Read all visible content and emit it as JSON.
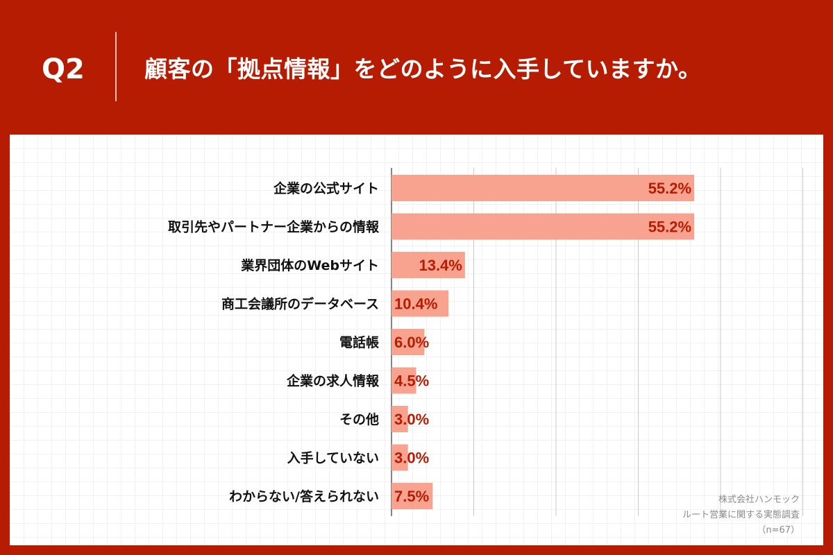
{
  "header": {
    "question_no": "Q2",
    "title": "顧客の「拠点情報」をどのように入手していますか。"
  },
  "source": {
    "company": "株式会社ハンモック",
    "survey": "ルート営業に関する実態調査",
    "sample": "（n=67）"
  },
  "colors": {
    "background": "#b51c02",
    "bar": "#f7a390",
    "value_label": "#b51c02"
  },
  "chart_data": {
    "type": "bar",
    "orientation": "horizontal",
    "categories": [
      "企業の公式サイト",
      "取引先やパートナー企業からの情報",
      "業界団体のWebサイト",
      "商工会議所のデータベース",
      "電話帳",
      "企業の求人情報",
      "その他",
      "入手していない",
      "わからない/答えられない"
    ],
    "values": [
      55.2,
      55.2,
      13.4,
      10.4,
      6.0,
      4.5,
      3.0,
      3.0,
      7.5
    ],
    "value_labels": [
      "55.2%",
      "55.2%",
      "13.4%",
      "10.4%",
      "6.0%",
      "4.5%",
      "3.0%",
      "3.0%",
      "7.5%"
    ],
    "unit": "%",
    "xlim": [
      0,
      75
    ],
    "gridlines": [
      15,
      30,
      45,
      60,
      75
    ],
    "title": "",
    "xlabel": "",
    "ylabel": ""
  }
}
